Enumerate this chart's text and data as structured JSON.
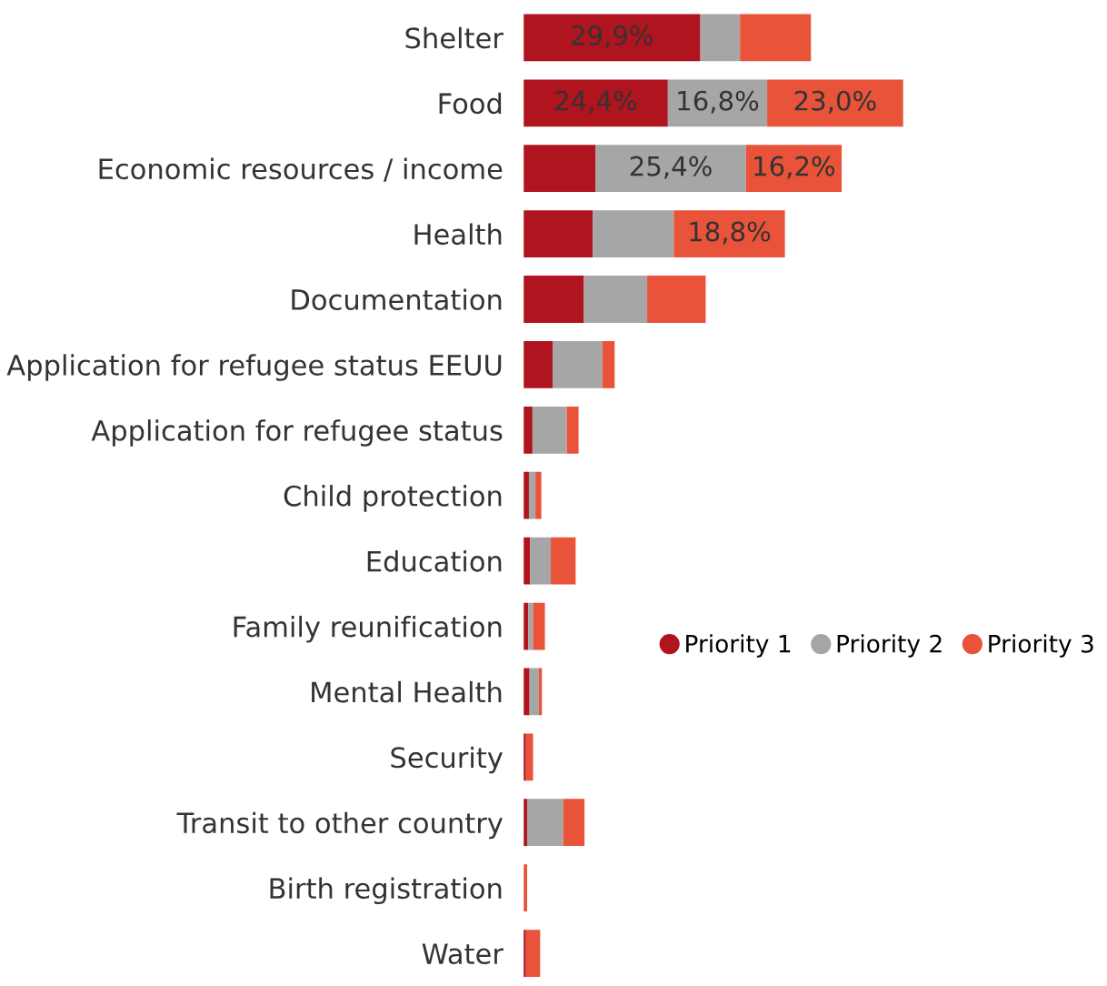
{
  "chart_data": {
    "type": "bar",
    "orientation": "horizontal",
    "stacked": true,
    "legend": "right",
    "grid": false,
    "tick_labels": "y",
    "categories": [
      "Shelter",
      "Food",
      "Economic resources / income",
      "Health",
      "Documentation",
      "Application for refugee status EEUU",
      "Application for refugee status",
      "Child protection",
      "Education",
      "Family reunification",
      "Mental Health",
      "Security",
      "Transit to other country",
      "Birth registration",
      "Water"
    ],
    "series": [
      {
        "name": "Priority 1",
        "color": "#b0141e",
        "values": [
          29.9,
          24.4,
          12.2,
          11.7,
          10.2,
          4.9,
          1.5,
          0.9,
          1.1,
          0.8,
          1.0,
          0.4,
          0.6,
          0,
          0.4
        ],
        "value_labels": [
          "29,9%",
          "24,4%",
          null,
          null,
          null,
          null,
          null,
          null,
          null,
          null,
          null,
          null,
          null,
          null,
          null
        ]
      },
      {
        "name": "Priority 2",
        "color": "#a6a6a6",
        "values": [
          6.7,
          16.8,
          25.4,
          13.7,
          10.7,
          8.4,
          5.8,
          1.1,
          3.5,
          0.8,
          1.6,
          0,
          6.1,
          0,
          null
        ],
        "value_labels": [
          null,
          "16,8%",
          "25,4%",
          null,
          null,
          null,
          null,
          null,
          null,
          null,
          null,
          null,
          null,
          null,
          null
        ]
      },
      {
        "name": "Priority 3",
        "color": "#e8533a",
        "values": [
          12.0,
          23.0,
          16.2,
          18.8,
          9.9,
          2.1,
          2.0,
          1.0,
          4.2,
          2.0,
          0.5,
          1.2,
          3.6,
          0.6,
          2.4
        ],
        "value_labels": [
          null,
          "23,0%",
          "16,2%",
          "18,8%",
          null,
          null,
          null,
          null,
          null,
          null,
          null,
          null,
          null,
          null,
          null
        ]
      }
    ]
  }
}
